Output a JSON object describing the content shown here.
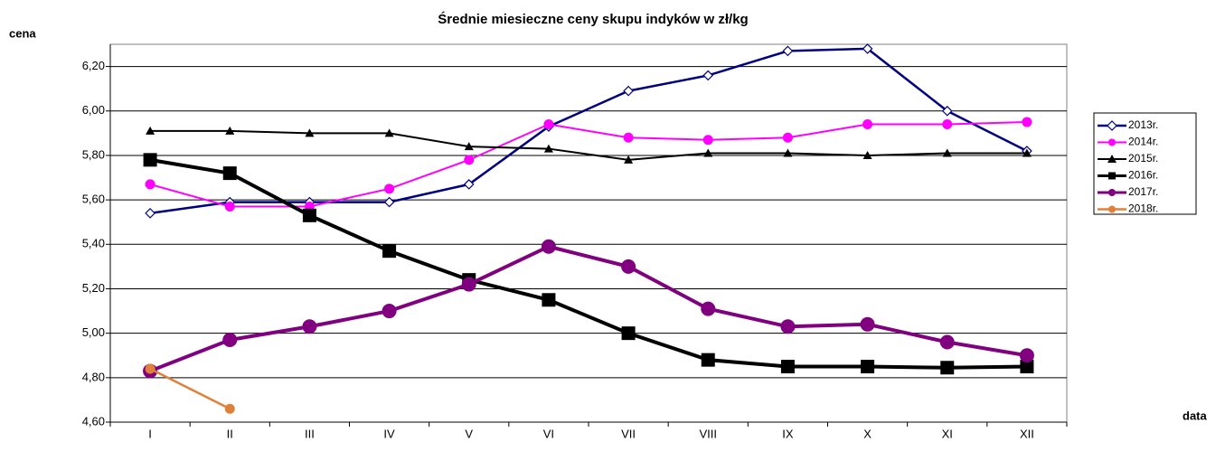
{
  "chart_data": {
    "type": "line",
    "title": "Średnie miesieczne ceny skupu indyków w zł/kg",
    "ylabel": "cena",
    "xlabel": "data",
    "categories": [
      "I",
      "II",
      "III",
      "IV",
      "V",
      "VI",
      "VII",
      "VIII",
      "IX",
      "X",
      "XI",
      "XII"
    ],
    "ylim": [
      4.6,
      6.3
    ],
    "yticks": [
      {
        "value": 4.6,
        "label": "4,60"
      },
      {
        "value": 4.8,
        "label": "4,80"
      },
      {
        "value": 5.0,
        "label": "5,00"
      },
      {
        "value": 5.2,
        "label": "5,20"
      },
      {
        "value": 5.4,
        "label": "5,40"
      },
      {
        "value": 5.6,
        "label": "5,60"
      },
      {
        "value": 5.8,
        "label": "5,80"
      },
      {
        "value": 6.0,
        "label": "6,00"
      },
      {
        "value": 6.2,
        "label": "6,20"
      }
    ],
    "grid": true,
    "legend": "right",
    "series": [
      {
        "name": "2013r.",
        "color": "#000080",
        "marker": "diamond",
        "width": 2.5,
        "values": [
          5.54,
          5.59,
          5.59,
          5.59,
          5.67,
          5.93,
          6.09,
          6.16,
          6.27,
          6.28,
          6.0,
          5.82
        ]
      },
      {
        "name": "2014r.",
        "color": "#ff00ff",
        "marker": "circle",
        "width": 2,
        "values": [
          5.67,
          5.57,
          5.57,
          5.65,
          5.78,
          5.94,
          5.88,
          5.87,
          5.88,
          5.94,
          5.94,
          5.95
        ]
      },
      {
        "name": "2015r.",
        "color": "#000000",
        "marker": "triangle",
        "width": 2,
        "values": [
          5.91,
          5.91,
          5.9,
          5.9,
          5.84,
          5.83,
          5.78,
          5.81,
          5.81,
          5.8,
          5.81,
          5.81
        ]
      },
      {
        "name": "2016r.",
        "color": "#000000",
        "marker": "square",
        "width": 4,
        "values": [
          5.78,
          5.72,
          5.53,
          5.37,
          5.24,
          5.15,
          5.0,
          4.88,
          4.85,
          4.85,
          4.845,
          4.85
        ]
      },
      {
        "name": "2017r.",
        "color": "#800080",
        "marker": "bigcircle",
        "width": 4,
        "values": [
          4.83,
          4.97,
          5.03,
          5.1,
          5.22,
          5.39,
          5.3,
          5.11,
          5.03,
          5.04,
          4.96,
          4.9
        ]
      },
      {
        "name": "2018r.",
        "color": "#e0813a",
        "marker": "circle",
        "width": 2.5,
        "values": [
          4.84,
          4.66,
          null,
          null,
          null,
          null,
          null,
          null,
          null,
          null,
          null,
          null
        ]
      }
    ]
  }
}
